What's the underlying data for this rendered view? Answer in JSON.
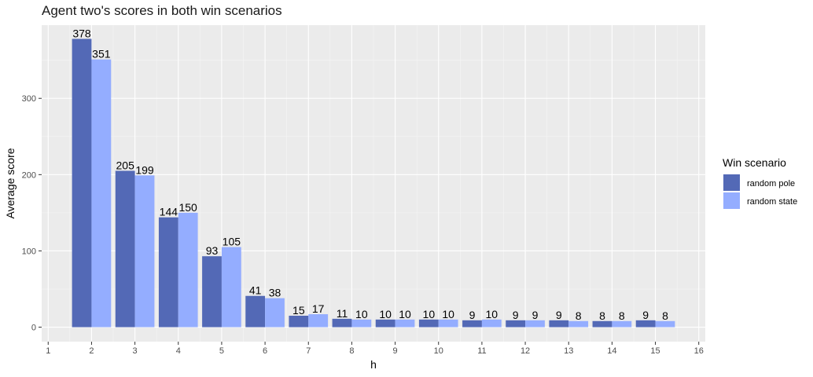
{
  "chart_data": {
    "type": "bar",
    "title": "Agent two's scores in both win scenarios",
    "xlabel": "h",
    "ylabel": "Average score",
    "x_ticks": [
      1,
      2,
      3,
      4,
      5,
      6,
      7,
      8,
      9,
      10,
      11,
      12,
      13,
      14,
      15,
      16
    ],
    "x": [
      2,
      3,
      4,
      5,
      6,
      7,
      8,
      9,
      10,
      11,
      12,
      13,
      14,
      15
    ],
    "xlim": [
      0.85,
      16.15
    ],
    "y_ticks": [
      0,
      100,
      200,
      300
    ],
    "ylim": [
      -19,
      396
    ],
    "grid": true,
    "legend": {
      "title": "Win scenario",
      "position": "right"
    },
    "series": [
      {
        "name": "random pole",
        "color": "#5369b6",
        "values": [
          378,
          205,
          144,
          93,
          41,
          15,
          11,
          10,
          10,
          9,
          9,
          9,
          8,
          9
        ]
      },
      {
        "name": "random state",
        "color": "#94adff",
        "values": [
          351,
          199,
          150,
          105,
          38,
          17,
          10,
          10,
          10,
          10,
          9,
          8,
          8,
          8
        ]
      }
    ]
  }
}
